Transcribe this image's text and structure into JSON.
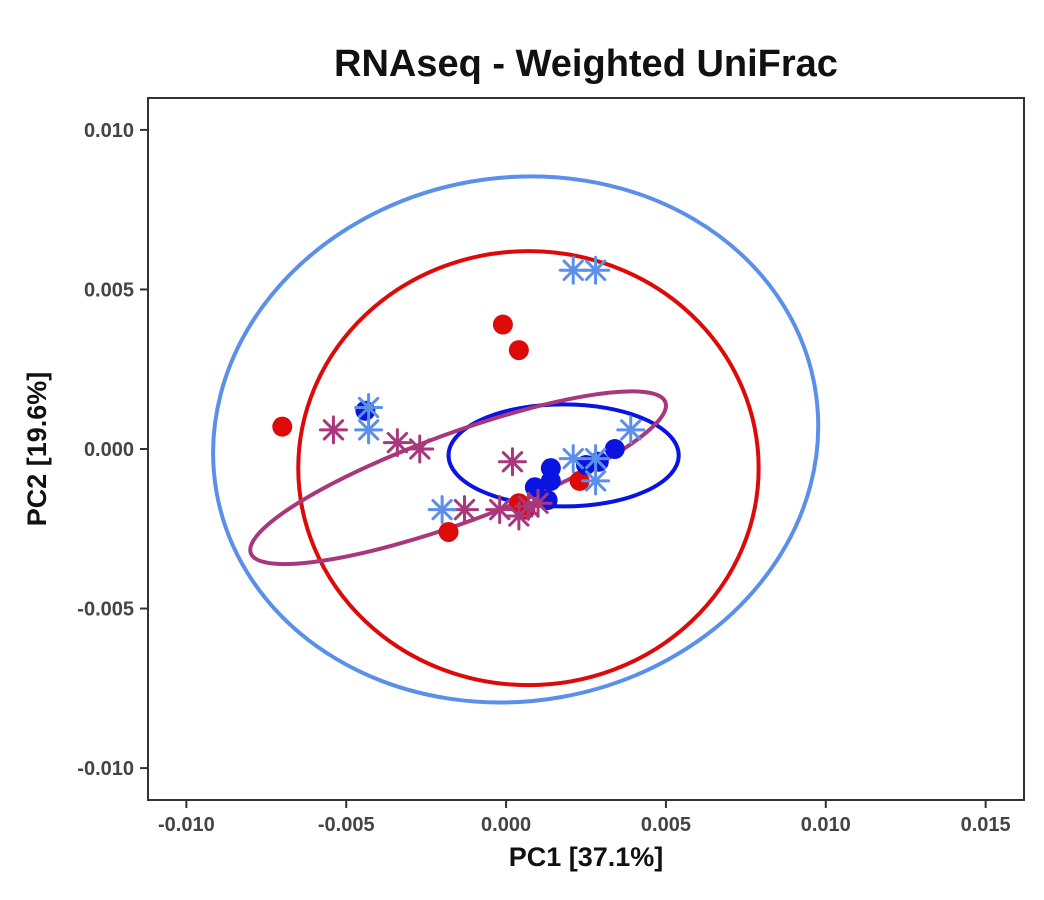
{
  "chart_data": {
    "type": "scatter",
    "title": "RNAseq - Weighted UniFrac",
    "xlabel": "PC1  [37.1%]",
    "ylabel": "PC2  [19.6%]",
    "xlim": [
      -0.0112,
      0.0162
    ],
    "ylim": [
      -0.011,
      0.011
    ],
    "xticks": [
      -0.01,
      -0.005,
      0.0,
      0.005,
      0.01,
      0.015
    ],
    "xtick_labels": [
      "-0.010",
      "-0.005",
      "0.000",
      "0.005",
      "0.010",
      "0.015"
    ],
    "yticks": [
      -0.01,
      -0.005,
      0.0,
      0.005,
      0.01
    ],
    "ytick_labels": [
      "-0.010",
      "-0.005",
      "0.000",
      "0.005",
      "0.010"
    ],
    "grid": false,
    "legend": "none",
    "series": [
      {
        "color": "#dd0a0a",
        "marker": "circle",
        "points": [
          [
            -0.007,
            0.0007
          ],
          [
            -0.0001,
            0.0039
          ],
          [
            0.0004,
            0.0031
          ],
          [
            -0.0018,
            -0.0026
          ],
          [
            0.0004,
            -0.0017
          ],
          [
            0.0006,
            -0.0019
          ],
          [
            0.0023,
            -0.001
          ]
        ],
        "ellipse": {
          "cx": 0.0007,
          "cy": -0.0006,
          "rx": 0.0072,
          "ry": 0.0068,
          "angle": 0
        }
      },
      {
        "color": "#0a14e0",
        "marker": "circle",
        "points": [
          [
            -0.0044,
            0.0012
          ],
          [
            0.0009,
            -0.0012
          ],
          [
            0.0013,
            -0.0016
          ],
          [
            0.0014,
            -0.001
          ],
          [
            0.0014,
            -0.0006
          ],
          [
            0.0025,
            -0.0005
          ],
          [
            0.0029,
            -0.0004
          ],
          [
            0.0034,
            0.0
          ]
        ],
        "ellipse": {
          "cx": 0.0018,
          "cy": -0.0002,
          "rx": 0.0036,
          "ry": 0.0016,
          "angle": 0
        }
      },
      {
        "color": "#a8377c",
        "marker": "asterisk",
        "points": [
          [
            -0.0054,
            0.0006
          ],
          [
            -0.0034,
            0.0002
          ],
          [
            -0.0027,
            0.0
          ],
          [
            0.0002,
            -0.0004
          ],
          [
            -0.0013,
            -0.0019
          ],
          [
            -0.0002,
            -0.0019
          ],
          [
            0.0004,
            -0.0021
          ],
          [
            0.001,
            -0.0017
          ],
          [
            0.0007,
            -0.0018
          ]
        ],
        "ellipse": {
          "cx": -0.0015,
          "cy": -0.0009,
          "rx": 0.0069,
          "ry": 0.0014,
          "angle": -20
        }
      },
      {
        "color": "#5a90ea",
        "marker": "asterisk",
        "points": [
          [
            0.0021,
            0.0056
          ],
          [
            0.0028,
            0.0056
          ],
          [
            -0.0043,
            0.0013
          ],
          [
            -0.0043,
            0.0006
          ],
          [
            0.0039,
            0.0006
          ],
          [
            0.0021,
            -0.0003
          ],
          [
            0.0028,
            -0.0003
          ],
          [
            0.0028,
            -0.001
          ],
          [
            -0.002,
            -0.0019
          ]
        ],
        "ellipse": {
          "cx": 0.0003,
          "cy": 0.0003,
          "rx": 0.0095,
          "ry": 0.0082,
          "angle": -10
        }
      }
    ]
  }
}
